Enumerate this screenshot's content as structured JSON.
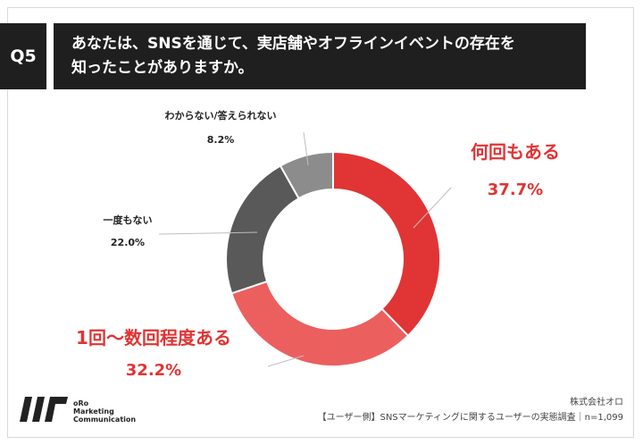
{
  "header": {
    "badge": "Q5",
    "question": "あなたは、SNSを通じて、実店舗やオフラインイベントの存在を\n知ったことがありますか。"
  },
  "chart_data": {
    "type": "pie",
    "style": "donut",
    "slices": [
      {
        "label": "何回もある",
        "value": 37.7,
        "value_label": "37.7%",
        "color": "#e13434",
        "label_color": "#e13434"
      },
      {
        "label": "1回〜数回程度ある",
        "value": 32.2,
        "value_label": "32.2%",
        "color": "#ec5f5f",
        "label_color": "#e13434"
      },
      {
        "label": "一度もない",
        "value": 22.0,
        "value_label": "22.0%",
        "color": "#595959",
        "label_color": "#222222"
      },
      {
        "label": "わからない/答えられない",
        "value": 8.2,
        "value_label": "8.2%",
        "color": "#8c8c8c",
        "label_color": "#222222"
      }
    ]
  },
  "footer": {
    "logo_lines": [
      "oRo",
      "Marketing",
      "Communication"
    ],
    "company": "株式会社オロ",
    "source": "【ユーザー側】SNSマーケティングに関するユーザーの実態調査｜n=1,099"
  }
}
